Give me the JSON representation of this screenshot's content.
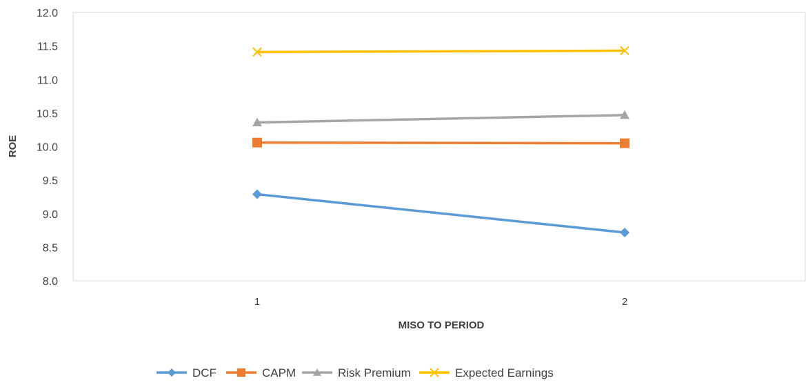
{
  "chart_data": {
    "type": "line",
    "title": "",
    "xlabel": "MISO TO PERIOD",
    "ylabel": "ROE",
    "categories": [
      "1",
      "2"
    ],
    "ylim": [
      8.0,
      12.0
    ],
    "ytick_step": 0.5,
    "ytick_labels": [
      "8.0",
      "8.5",
      "9.0",
      "9.5",
      "10.0",
      "10.5",
      "11.0",
      "11.5",
      "12.0"
    ],
    "grid": false,
    "legend_position": "bottom",
    "series": [
      {
        "name": "DCF",
        "values": [
          9.29,
          8.72
        ],
        "color": "#5b9bd5",
        "marker": "diamond"
      },
      {
        "name": "CAPM",
        "values": [
          10.06,
          10.05
        ],
        "color": "#ed7d31",
        "marker": "square"
      },
      {
        "name": "Risk Premium",
        "values": [
          10.36,
          10.47
        ],
        "color": "#a5a5a5",
        "marker": "triangle"
      },
      {
        "name": "Expected Earnings",
        "values": [
          11.41,
          11.43
        ],
        "color": "#ffc000",
        "marker": "x"
      }
    ]
  }
}
